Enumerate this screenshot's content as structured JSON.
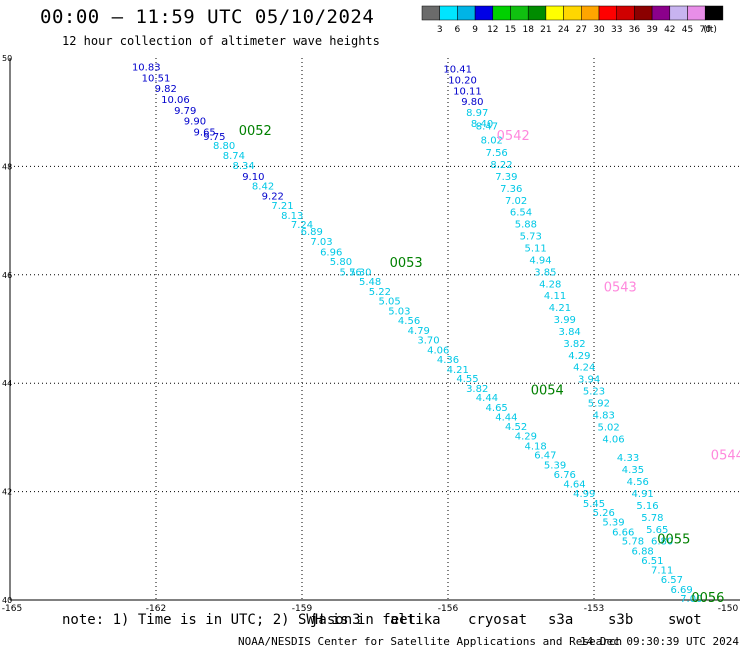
{
  "header": {
    "title": "00:00 — 11:59 UTC 05/10/2024",
    "subtitle": "12 hour collection of altimeter wave heights"
  },
  "legend": {
    "unit": "(ft)",
    "items": [
      {
        "label": "3",
        "color": "#6b6b6b"
      },
      {
        "label": "6",
        "color": "#00e5ff"
      },
      {
        "label": "9",
        "color": "#00b4e6"
      },
      {
        "label": "12",
        "color": "#0000e6"
      },
      {
        "label": "15",
        "color": "#00d000"
      },
      {
        "label": "18",
        "color": "#10c010"
      },
      {
        "label": "21",
        "color": "#008c00"
      },
      {
        "label": "24",
        "color": "#ffff00"
      },
      {
        "label": "27",
        "color": "#ffd700"
      },
      {
        "label": "30",
        "color": "#ffa500"
      },
      {
        "label": "33",
        "color": "#ff0000"
      },
      {
        "label": "36",
        "color": "#d00000"
      },
      {
        "label": "39",
        "color": "#8b0000"
      },
      {
        "label": "42",
        "color": "#8b008b"
      },
      {
        "label": "45",
        "color": "#c8b4f0"
      },
      {
        "label": "70",
        "color": "#e88ee8"
      },
      {
        "label": "",
        "color": "#000000"
      }
    ]
  },
  "map": {
    "lon_ticks": [
      "-165",
      "-162",
      "-159",
      "-156",
      "-153",
      "-150"
    ],
    "lat_ticks": [
      "50",
      "48",
      "46",
      "44",
      "42",
      "40"
    ],
    "lon_min": -165,
    "lon_max": -150,
    "lat_min": 40,
    "lat_max": 50,
    "colors": {
      "dark": "#0000cc",
      "light": "#00c8e6",
      "time_jason": "#008000",
      "time_swot": "#ff88dd"
    },
    "tracks": [
      {
        "name": "track-west",
        "points": [
          {
            "v": "10.83",
            "lat": 49.77,
            "lon": -162.2,
            "c": "dark"
          },
          {
            "v": "10.51",
            "lat": 49.57,
            "lon": -162.0,
            "c": "dark"
          },
          {
            "v": "9.82",
            "lat": 49.37,
            "lon": -161.8,
            "c": "dark"
          },
          {
            "v": "10.06",
            "lat": 49.17,
            "lon": -161.6,
            "c": "dark"
          },
          {
            "v": "9.79",
            "lat": 48.97,
            "lon": -161.4,
            "c": "dark"
          },
          {
            "v": "9.90",
            "lat": 48.77,
            "lon": -161.2,
            "c": "dark"
          },
          {
            "v": "9.65",
            "lat": 48.57,
            "lon": -161.0,
            "c": "dark"
          },
          {
            "v": "9.75",
            "lat": 48.49,
            "lon": -160.8,
            "c": "dark"
          },
          {
            "v": "8.80",
            "lat": 48.32,
            "lon": -160.6,
            "c": "light"
          },
          {
            "v": "8.74",
            "lat": 48.14,
            "lon": -160.4,
            "c": "light"
          },
          {
            "v": "8.34",
            "lat": 47.95,
            "lon": -160.2,
            "c": "light"
          },
          {
            "v": "9.10",
            "lat": 47.75,
            "lon": -160.0,
            "c": "dark"
          },
          {
            "v": "8.42",
            "lat": 47.57,
            "lon": -159.8,
            "c": "light"
          },
          {
            "v": "9.22",
            "lat": 47.39,
            "lon": -159.6,
            "c": "dark"
          },
          {
            "v": "7.21",
            "lat": 47.21,
            "lon": -159.4,
            "c": "light"
          },
          {
            "v": "8.13",
            "lat": 47.03,
            "lon": -159.2,
            "c": "light"
          },
          {
            "v": "7.24",
            "lat": 46.86,
            "lon": -159.0,
            "c": "light"
          },
          {
            "v": "6.89",
            "lat": 46.73,
            "lon": -158.8,
            "c": "light"
          },
          {
            "v": "7.03",
            "lat": 46.55,
            "lon": -158.6,
            "c": "light"
          },
          {
            "v": "6.96",
            "lat": 46.36,
            "lon": -158.4,
            "c": "light"
          },
          {
            "v": "5.80",
            "lat": 46.18,
            "lon": -158.2,
            "c": "light"
          },
          {
            "v": "5.76",
            "lat": 45.99,
            "lon": -158.0,
            "c": "light"
          },
          {
            "v": "5.30",
            "lat": 45.99,
            "lon": -157.8,
            "c": "light"
          },
          {
            "v": "5.48",
            "lat": 45.81,
            "lon": -157.6,
            "c": "light"
          },
          {
            "v": "5.22",
            "lat": 45.63,
            "lon": -157.4,
            "c": "light"
          },
          {
            "v": "5.05",
            "lat": 45.45,
            "lon": -157.2,
            "c": "light"
          },
          {
            "v": "5.03",
            "lat": 45.27,
            "lon": -157.0,
            "c": "light"
          },
          {
            "v": "4.56",
            "lat": 45.09,
            "lon": -156.8,
            "c": "light"
          },
          {
            "v": "4.79",
            "lat": 44.91,
            "lon": -156.6,
            "c": "light"
          },
          {
            "v": "3.70",
            "lat": 44.73,
            "lon": -156.4,
            "c": "light"
          },
          {
            "v": "4.06",
            "lat": 44.55,
            "lon": -156.2,
            "c": "light"
          },
          {
            "v": "4.36",
            "lat": 44.37,
            "lon": -156.0,
            "c": "light"
          },
          {
            "v": "4.21",
            "lat": 44.19,
            "lon": -155.8,
            "c": "light"
          },
          {
            "v": "4.55",
            "lat": 44.02,
            "lon": -155.6,
            "c": "light"
          },
          {
            "v": "3.82",
            "lat": 43.84,
            "lon": -155.4,
            "c": "light"
          },
          {
            "v": "4.44",
            "lat": 43.67,
            "lon": -155.2,
            "c": "light"
          },
          {
            "v": "4.65",
            "lat": 43.49,
            "lon": -155.0,
            "c": "light"
          },
          {
            "v": "4.44",
            "lat": 43.31,
            "lon": -154.8,
            "c": "light"
          },
          {
            "v": "4.52",
            "lat": 43.14,
            "lon": -154.6,
            "c": "light"
          },
          {
            "v": "4.29",
            "lat": 42.96,
            "lon": -154.4,
            "c": "light"
          },
          {
            "v": "4.18",
            "lat": 42.78,
            "lon": -154.2,
            "c": "light"
          },
          {
            "v": "6.47",
            "lat": 42.61,
            "lon": -154.0,
            "c": "light"
          },
          {
            "v": "5.39",
            "lat": 42.43,
            "lon": -153.8,
            "c": "light"
          },
          {
            "v": "6.76",
            "lat": 42.25,
            "lon": -153.6,
            "c": "light"
          },
          {
            "v": "4.64",
            "lat": 42.08,
            "lon": -153.4,
            "c": "light"
          },
          {
            "v": "4.99",
            "lat": 41.9,
            "lon": -153.2,
            "c": "light"
          },
          {
            "v": "5.45",
            "lat": 41.72,
            "lon": -153.0,
            "c": "light"
          },
          {
            "v": "5.26",
            "lat": 41.55,
            "lon": -152.8,
            "c": "light"
          },
          {
            "v": "5.39",
            "lat": 41.37,
            "lon": -152.6,
            "c": "light"
          },
          {
            "v": "6.66",
            "lat": 41.19,
            "lon": -152.4,
            "c": "light"
          },
          {
            "v": "5.78",
            "lat": 41.02,
            "lon": -152.2,
            "c": "light"
          },
          {
            "v": "6.88",
            "lat": 40.84,
            "lon": -152.0,
            "c": "light"
          },
          {
            "v": "6.51",
            "lat": 40.66,
            "lon": -151.8,
            "c": "light"
          },
          {
            "v": "7.11",
            "lat": 40.49,
            "lon": -151.6,
            "c": "light"
          },
          {
            "v": "6.57",
            "lat": 40.31,
            "lon": -151.4,
            "c": "light"
          },
          {
            "v": "6.69",
            "lat": 40.13,
            "lon": -151.2,
            "c": "light"
          },
          {
            "v": "7.00",
            "lat": 39.96,
            "lon": -151.0,
            "c": "light"
          }
        ]
      },
      {
        "name": "track-east",
        "points": [
          {
            "v": "10.41",
            "lat": 49.73,
            "lon": -155.8,
            "c": "dark"
          },
          {
            "v": "10.20",
            "lat": 49.53,
            "lon": -155.7,
            "c": "dark"
          },
          {
            "v": "10.11",
            "lat": 49.33,
            "lon": -155.6,
            "c": "dark"
          },
          {
            "v": "9.80",
            "lat": 49.13,
            "lon": -155.5,
            "c": "dark"
          },
          {
            "v": "8.97",
            "lat": 48.93,
            "lon": -155.4,
            "c": "light"
          },
          {
            "v": "8.40",
            "lat": 48.73,
            "lon": -155.3,
            "c": "light"
          },
          {
            "v": "8.47",
            "lat": 48.68,
            "lon": -155.2,
            "c": "light"
          },
          {
            "v": "8.02",
            "lat": 48.42,
            "lon": -155.1,
            "c": "light"
          },
          {
            "v": "7.56",
            "lat": 48.19,
            "lon": -155.0,
            "c": "light"
          },
          {
            "v": "8.22",
            "lat": 47.97,
            "lon": -154.9,
            "c": "light"
          },
          {
            "v": "7.39",
            "lat": 47.75,
            "lon": -154.8,
            "c": "light"
          },
          {
            "v": "7.36",
            "lat": 47.53,
            "lon": -154.7,
            "c": "light"
          },
          {
            "v": "7.02",
            "lat": 47.31,
            "lon": -154.6,
            "c": "light"
          },
          {
            "v": "6.54",
            "lat": 47.09,
            "lon": -154.5,
            "c": "light"
          },
          {
            "v": "5.88",
            "lat": 46.87,
            "lon": -154.4,
            "c": "light"
          },
          {
            "v": "5.73",
            "lat": 46.65,
            "lon": -154.3,
            "c": "light"
          },
          {
            "v": "5.11",
            "lat": 46.43,
            "lon": -154.2,
            "c": "light"
          },
          {
            "v": "4.94",
            "lat": 46.21,
            "lon": -154.1,
            "c": "light"
          },
          {
            "v": "3.85",
            "lat": 45.99,
            "lon": -154.0,
            "c": "light"
          },
          {
            "v": "4.28",
            "lat": 45.77,
            "lon": -153.9,
            "c": "light"
          },
          {
            "v": "4.11",
            "lat": 45.55,
            "lon": -153.8,
            "c": "light"
          },
          {
            "v": "4.21",
            "lat": 45.33,
            "lon": -153.7,
            "c": "light"
          },
          {
            "v": "3.99",
            "lat": 45.11,
            "lon": -153.6,
            "c": "light"
          },
          {
            "v": "3.84",
            "lat": 44.89,
            "lon": -153.5,
            "c": "light"
          },
          {
            "v": "3.82",
            "lat": 44.67,
            "lon": -153.4,
            "c": "light"
          },
          {
            "v": "4.29",
            "lat": 44.45,
            "lon": -153.3,
            "c": "light"
          },
          {
            "v": "4.24",
            "lat": 44.23,
            "lon": -153.2,
            "c": "light"
          },
          {
            "v": "3.94",
            "lat": 44.01,
            "lon": -153.1,
            "c": "light"
          },
          {
            "v": "5.23",
            "lat": 43.79,
            "lon": -153.0,
            "c": "light"
          },
          {
            "v": "5.92",
            "lat": 43.57,
            "lon": -152.9,
            "c": "light"
          },
          {
            "v": "4.83",
            "lat": 43.35,
            "lon": -152.8,
            "c": "light"
          },
          {
            "v": "5.02",
            "lat": 43.13,
            "lon": -152.7,
            "c": "light"
          },
          {
            "v": "4.06",
            "lat": 42.91,
            "lon": -152.6,
            "c": "light"
          },
          {
            "v": "4.33",
            "lat": 42.56,
            "lon": -152.3,
            "c": "light"
          },
          {
            "v": "4.35",
            "lat": 42.34,
            "lon": -152.2,
            "c": "light"
          },
          {
            "v": "4.56",
            "lat": 42.12,
            "lon": -152.1,
            "c": "light"
          },
          {
            "v": "4.91",
            "lat": 41.9,
            "lon": -152.0,
            "c": "light"
          },
          {
            "v": "5.16",
            "lat": 41.68,
            "lon": -151.9,
            "c": "light"
          },
          {
            "v": "5.78",
            "lat": 41.46,
            "lon": -151.8,
            "c": "light"
          },
          {
            "v": "5.65",
            "lat": 41.24,
            "lon": -151.7,
            "c": "light"
          },
          {
            "v": "6.80",
            "lat": 41.02,
            "lon": -151.6,
            "c": "light"
          }
        ]
      }
    ],
    "time_labels": [
      {
        "text": "0052",
        "lat": 48.58,
        "lon": -160.3,
        "c": "time_jason"
      },
      {
        "text": "0053",
        "lat": 46.14,
        "lon": -157.2,
        "c": "time_jason"
      },
      {
        "text": "0054",
        "lat": 43.79,
        "lon": -154.3,
        "c": "time_jason"
      },
      {
        "text": "0055",
        "lat": 41.04,
        "lon": -151.7,
        "c": "time_jason"
      },
      {
        "text": "0056",
        "lat": 39.96,
        "lon": -151.0,
        "c": "time_jason"
      },
      {
        "text": "0542",
        "lat": 48.49,
        "lon": -155.0,
        "c": "time_swot"
      },
      {
        "text": "0543",
        "lat": 45.69,
        "lon": -152.8,
        "c": "time_swot"
      },
      {
        "text": "0544",
        "lat": 42.59,
        "lon": -150.6,
        "c": "time_swot"
      }
    ]
  },
  "satellites": {
    "note": "note: 1) Time is in UTC; 2) SWH is in feet",
    "items": [
      {
        "label": "jason3",
        "color": "#008000"
      },
      {
        "label": "altika",
        "color": "#ff9900"
      },
      {
        "label": "cryosat",
        "color": "#dd0000"
      },
      {
        "label": "s3a",
        "color": "#8b0000"
      },
      {
        "label": "s3b",
        "color": "#b8a8e8"
      },
      {
        "label": "swot",
        "color": "#ff88dd"
      }
    ]
  },
  "footer": {
    "credit": "NOAA/NESDIS Center for Satellite Applications and Research",
    "timestamp": "14 Dec 09:30:39 UTC 2024"
  }
}
